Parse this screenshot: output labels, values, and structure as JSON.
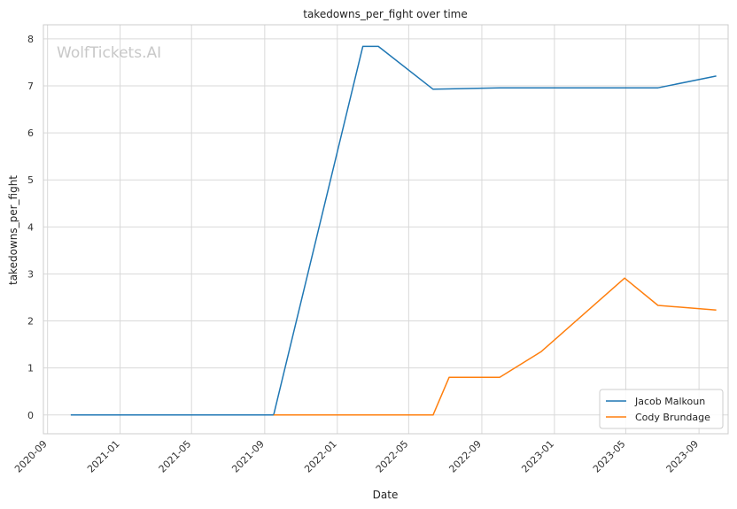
{
  "chart_data": {
    "type": "line",
    "title": "takedowns_per_fight over time",
    "xlabel": "Date",
    "ylabel": "takedowns_per_fight",
    "watermark": "WolfTickets.AI",
    "xlim": [
      "2020-08-25",
      "2023-10-20"
    ],
    "ylim": [
      -0.4,
      8.3
    ],
    "x_ticks": [
      "2020-09",
      "2021-01",
      "2021-05",
      "2021-09",
      "2022-01",
      "2022-05",
      "2022-09",
      "2023-01",
      "2023-05",
      "2023-09"
    ],
    "y_ticks": [
      0,
      1,
      2,
      3,
      4,
      5,
      6,
      7,
      8
    ],
    "grid": true,
    "legend_position": "bottom-right",
    "series": [
      {
        "name": "Jacob Malkoun",
        "color": "#1f77b4",
        "x": [
          "2020-10-10",
          "2021-09-16",
          "2022-02-13",
          "2022-03-11",
          "2022-06-11",
          "2022-10-01",
          "2023-06-24",
          "2023-09-30"
        ],
        "y": [
          0,
          0,
          7.84,
          7.84,
          6.93,
          6.96,
          6.96,
          7.21
        ]
      },
      {
        "name": "Cody Brundage",
        "color": "#ff7f0e",
        "x": [
          "2021-09-16",
          "2022-06-11",
          "2022-07-08",
          "2022-10-01",
          "2022-12-10",
          "2023-04-29",
          "2023-06-24",
          "2023-09-30"
        ],
        "y": [
          0,
          0,
          0.8,
          0.8,
          1.35,
          2.91,
          2.33,
          2.23
        ]
      }
    ]
  }
}
